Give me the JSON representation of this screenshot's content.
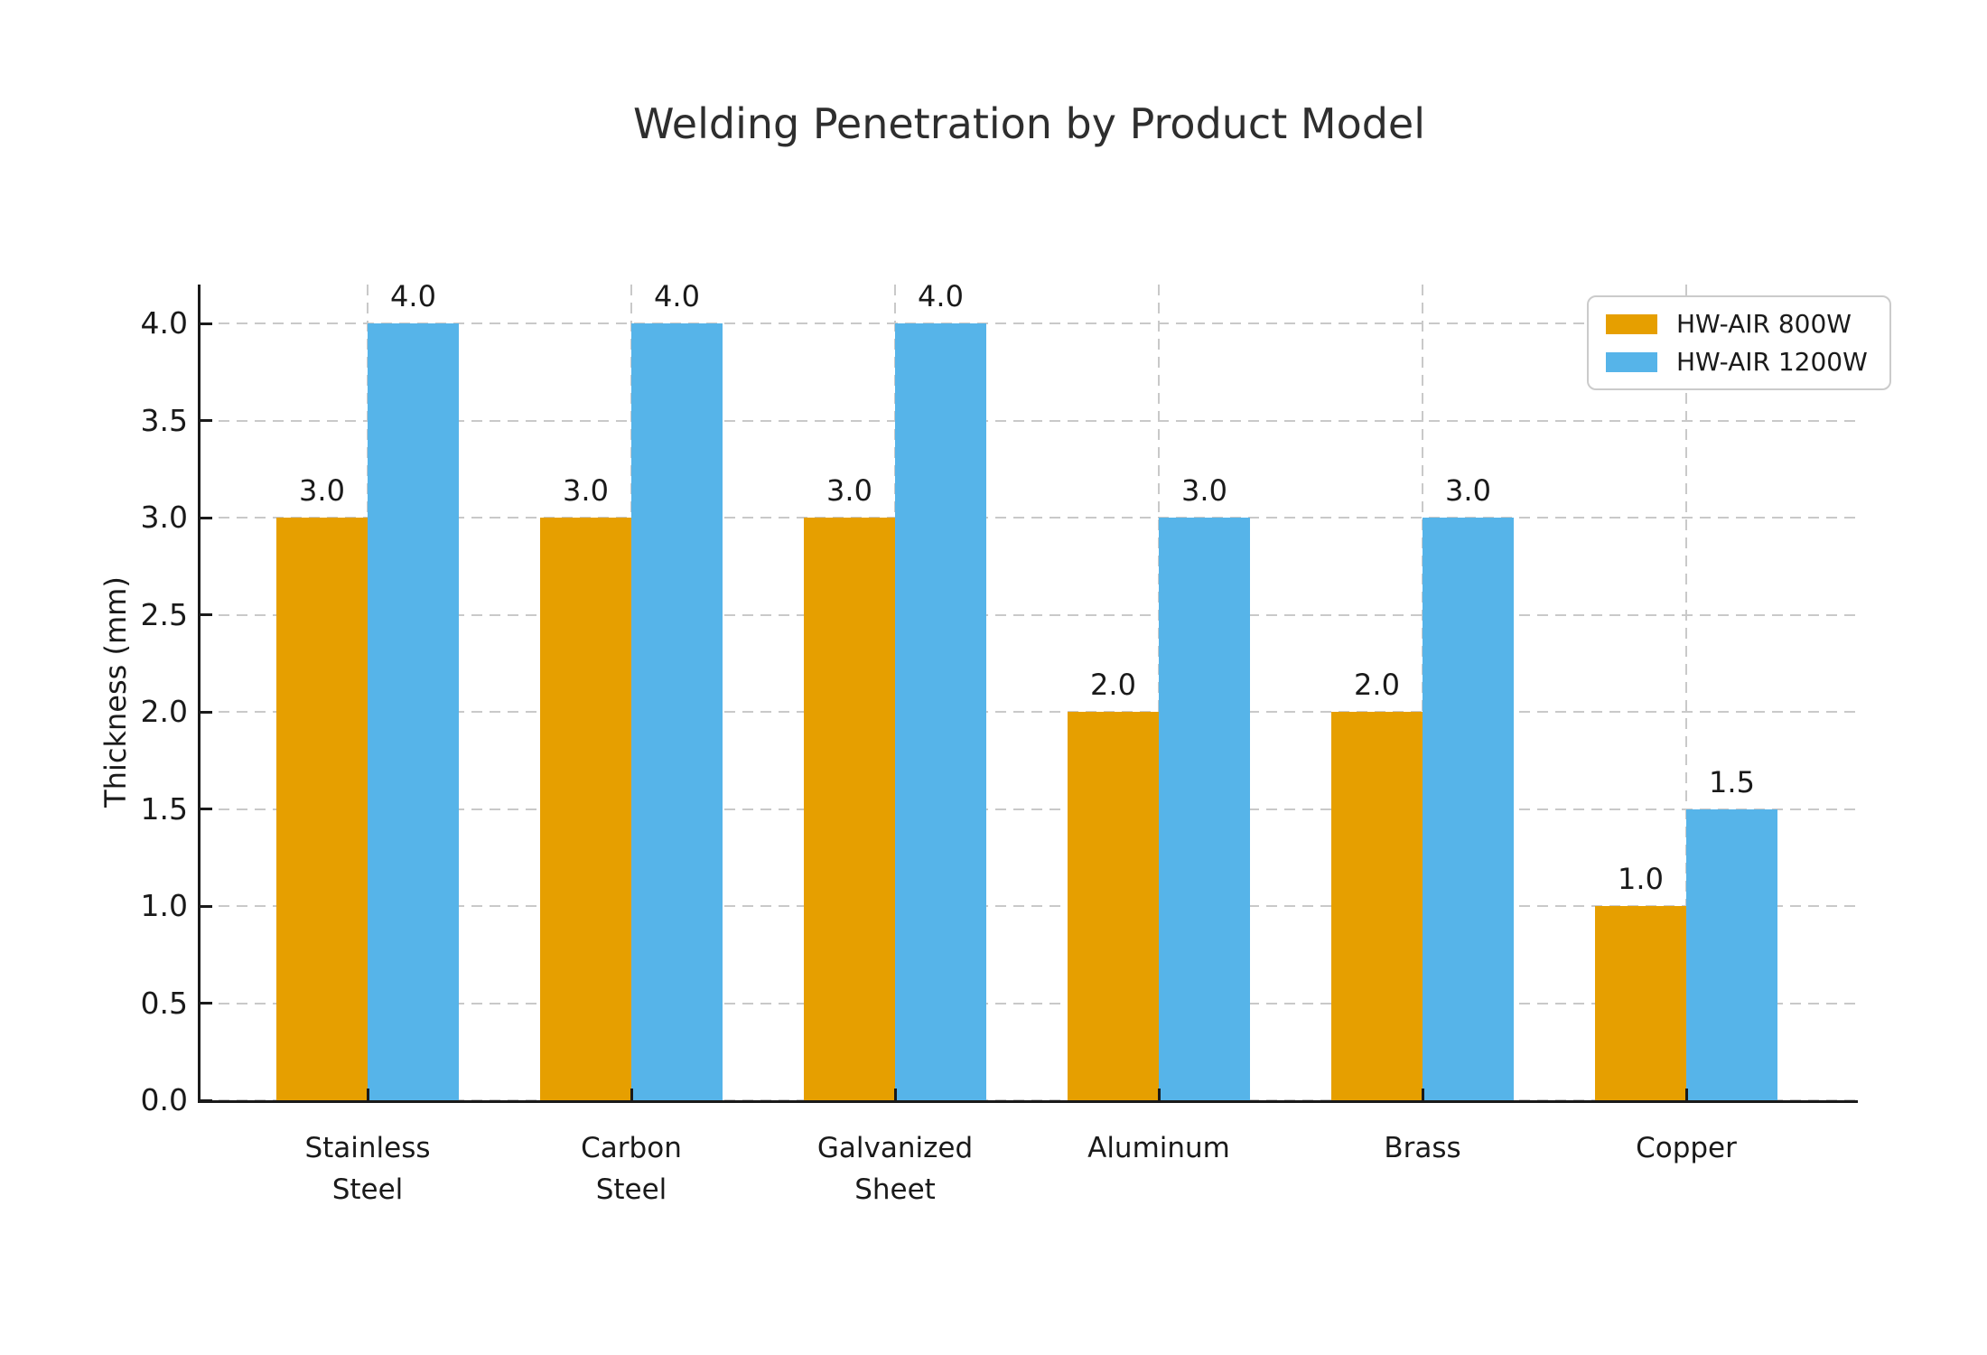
{
  "chart_data": {
    "type": "bar",
    "title": "Welding Penetration by Product Model",
    "ylabel": "Thickness (mm)",
    "xlabel": "",
    "categories": [
      "Stainless\nSteel",
      "Carbon\nSteel",
      "Galvanized\nSheet",
      "Aluminum",
      "Brass",
      "Copper"
    ],
    "series": [
      {
        "name": "HW-AIR 800W",
        "color": "#E69F00",
        "values": [
          3.0,
          3.0,
          3.0,
          2.0,
          2.0,
          1.0
        ]
      },
      {
        "name": "HW-AIR 1200W",
        "color": "#56B4E9",
        "values": [
          4.0,
          4.0,
          4.0,
          3.0,
          3.0,
          1.5
        ]
      }
    ],
    "yticks": [
      0.0,
      0.5,
      1.0,
      1.5,
      2.0,
      2.5,
      3.0,
      3.5,
      4.0
    ],
    "ylim": [
      0,
      4.2
    ],
    "grid": {
      "horizontal": true,
      "vertical": true,
      "style": "dashed",
      "color": "#c9c9c9"
    },
    "legend": {
      "position": "upper-right",
      "entries": [
        "HW-AIR 800W",
        "HW-AIR 1200W"
      ]
    },
    "value_labels_shown": true,
    "tick_label_decimals": 1
  },
  "colors": {
    "background": "#ffffff",
    "title_text": "#2e2e2e",
    "axis_text": "#1a1a1a",
    "spine": "#1a1a1a",
    "grid": "#c9c9c9",
    "legend_border": "#cbcbcb",
    "series_orange": "#E69F00",
    "series_blue": "#56B4E9"
  }
}
